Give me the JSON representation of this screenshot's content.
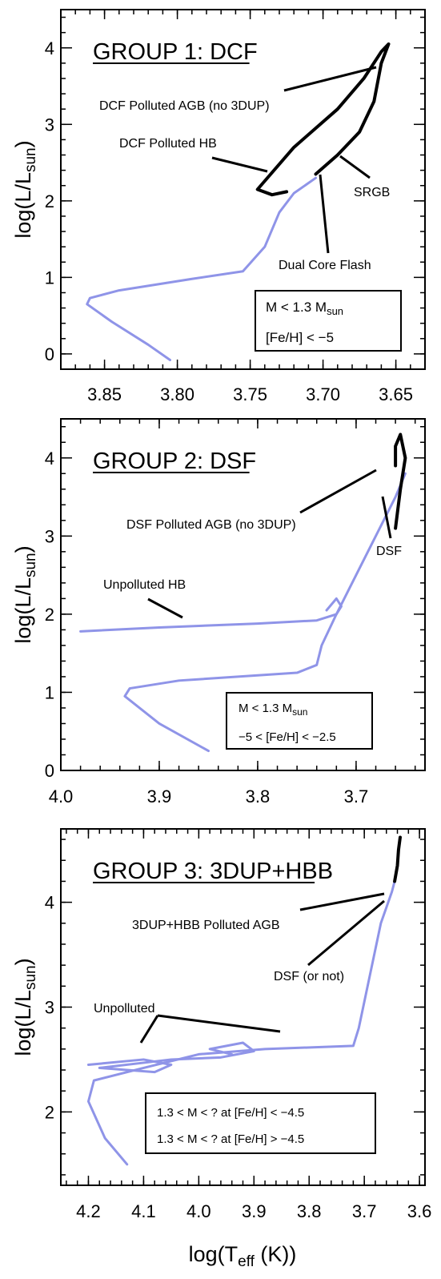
{
  "colors": {
    "track": "#8f94e8",
    "polluted": "#000000"
  },
  "chart_data": [
    {
      "type": "line",
      "title": "GROUP 1: DCF",
      "xlabel": "",
      "ylabel": "log(L/Lsun)",
      "xlim": [
        3.88,
        3.63
      ],
      "ylim": [
        -0.2,
        4.5
      ],
      "x_ticks": [
        "3.85",
        "3.80",
        "3.75",
        "3.70",
        "3.65"
      ],
      "y_ticks": [
        "0",
        "1",
        "2",
        "3",
        "4"
      ],
      "series": [
        {
          "style": "unpolluted track (blue)",
          "x": [
            3.805,
            3.82,
            3.845,
            3.862,
            3.86,
            3.84,
            3.79,
            3.755,
            3.74,
            3.73,
            3.72,
            3.705
          ],
          "y": [
            -0.08,
            0.12,
            0.42,
            0.65,
            0.73,
            0.83,
            0.98,
            1.08,
            1.4,
            1.85,
            2.1,
            2.3
          ]
        },
        {
          "style": "polluted track (black)",
          "x": [
            3.705,
            3.69,
            3.675,
            3.665,
            3.66,
            3.655,
            3.66,
            3.672,
            3.69,
            3.72,
            3.745,
            3.735,
            3.725
          ],
          "y": [
            2.35,
            2.6,
            2.9,
            3.3,
            3.8,
            4.05,
            3.95,
            3.6,
            3.2,
            2.7,
            2.15,
            2.08,
            2.12
          ]
        }
      ],
      "annotations": {
        "agb": "DCF Polluted AGB (no 3DUP)",
        "hb": "DCF Polluted HB",
        "srgb": "SRGB",
        "flash": "Dual Core Flash"
      },
      "box": {
        "mass": "M < 1.3 M",
        "mass_sub": "sun",
        "feh": "[Fe/H] < −5"
      }
    },
    {
      "type": "line",
      "title": "GROUP 2: DSF",
      "xlabel": "",
      "ylabel": "log(L/Lsun)",
      "xlim": [
        4.0,
        3.63
      ],
      "ylim": [
        0,
        4.5
      ],
      "x_ticks": [
        "4.0",
        "3.9",
        "3.8",
        "3.7"
      ],
      "y_ticks": [
        "0",
        "1",
        "2",
        "3",
        "4"
      ],
      "series": [
        {
          "style": "main sequence to RGB (blue)",
          "x": [
            3.85,
            3.9,
            3.935,
            3.93,
            3.88,
            3.76,
            3.74,
            3.735,
            3.72,
            3.7,
            3.68,
            3.66,
            3.65
          ],
          "y": [
            0.25,
            0.6,
            0.95,
            1.05,
            1.15,
            1.25,
            1.35,
            1.6,
            2.0,
            2.5,
            3.0,
            3.5,
            3.8
          ]
        },
        {
          "style": "unpolluted HB (blue)",
          "x": [
            3.98,
            3.9,
            3.8,
            3.74,
            3.72,
            3.715,
            3.72,
            3.73
          ],
          "y": [
            1.78,
            1.83,
            1.88,
            1.92,
            2.0,
            2.1,
            2.2,
            2.05
          ]
        },
        {
          "style": "DSF polluted AGB (black)",
          "x": [
            3.66,
            3.655,
            3.65,
            3.655,
            3.66,
            3.66
          ],
          "y": [
            3.1,
            3.6,
            4.0,
            4.3,
            4.15,
            3.9
          ]
        }
      ],
      "annotations": {
        "agb": "DSF Polluted AGB (no 3DUP)",
        "hb": "Unpolluted HB",
        "dsf": "DSF"
      },
      "box": {
        "mass": "M < 1.3 M",
        "mass_sub": "sun",
        "feh": "−5 < [Fe/H] < −2.5"
      }
    },
    {
      "type": "line",
      "title": "GROUP 3: 3DUP+HBB",
      "xlabel": "log(Teff (K))",
      "ylabel": "log(L/Lsun)",
      "xlim": [
        4.25,
        3.59
      ],
      "ylim": [
        1.3,
        4.7
      ],
      "x_ticks": [
        "4.2",
        "4.1",
        "4.0",
        "3.9",
        "3.8",
        "3.7",
        "3.6"
      ],
      "y_ticks": [
        "2",
        "3",
        "4"
      ],
      "series": [
        {
          "style": "unpolluted track (blue)",
          "x": [
            4.13,
            4.17,
            4.2,
            4.19,
            4.1,
            4.0,
            3.88,
            3.72,
            3.71,
            3.69,
            3.67,
            3.65,
            3.645
          ],
          "y": [
            1.5,
            1.75,
            2.1,
            2.3,
            2.42,
            2.55,
            2.6,
            2.63,
            2.8,
            3.3,
            3.8,
            4.1,
            4.2
          ]
        },
        {
          "style": "HB loops (blue)",
          "x": [
            4.2,
            4.1,
            4.05,
            4.08,
            4.18,
            4.05,
            3.96,
            3.9,
            3.92,
            3.98,
            3.94
          ],
          "y": [
            2.45,
            2.5,
            2.45,
            2.38,
            2.42,
            2.5,
            2.52,
            2.58,
            2.66,
            2.6,
            2.55
          ]
        },
        {
          "style": "3DUP+HBB polluted AGB (black)",
          "x": [
            3.645,
            3.64,
            3.638,
            3.635
          ],
          "y": [
            4.2,
            4.35,
            4.5,
            4.62
          ]
        }
      ],
      "annotations": {
        "agb": "3DUP+HBB Polluted AGB",
        "dsf": "DSF (or not)",
        "unpolluted": "Unpolluted"
      },
      "box": {
        "line1": "1.3 < M < ? at [Fe/H] < −4.5",
        "line2": "1.3 < M < ?  at [Fe/H] > −4.5"
      }
    }
  ],
  "xlabel_text": "log(T",
  "xlabel_sub": "eff",
  "xlabel_tail": " (K))",
  "ylabel_text": "log(L/L",
  "ylabel_sub": "sun",
  "ylabel_tail": ")"
}
